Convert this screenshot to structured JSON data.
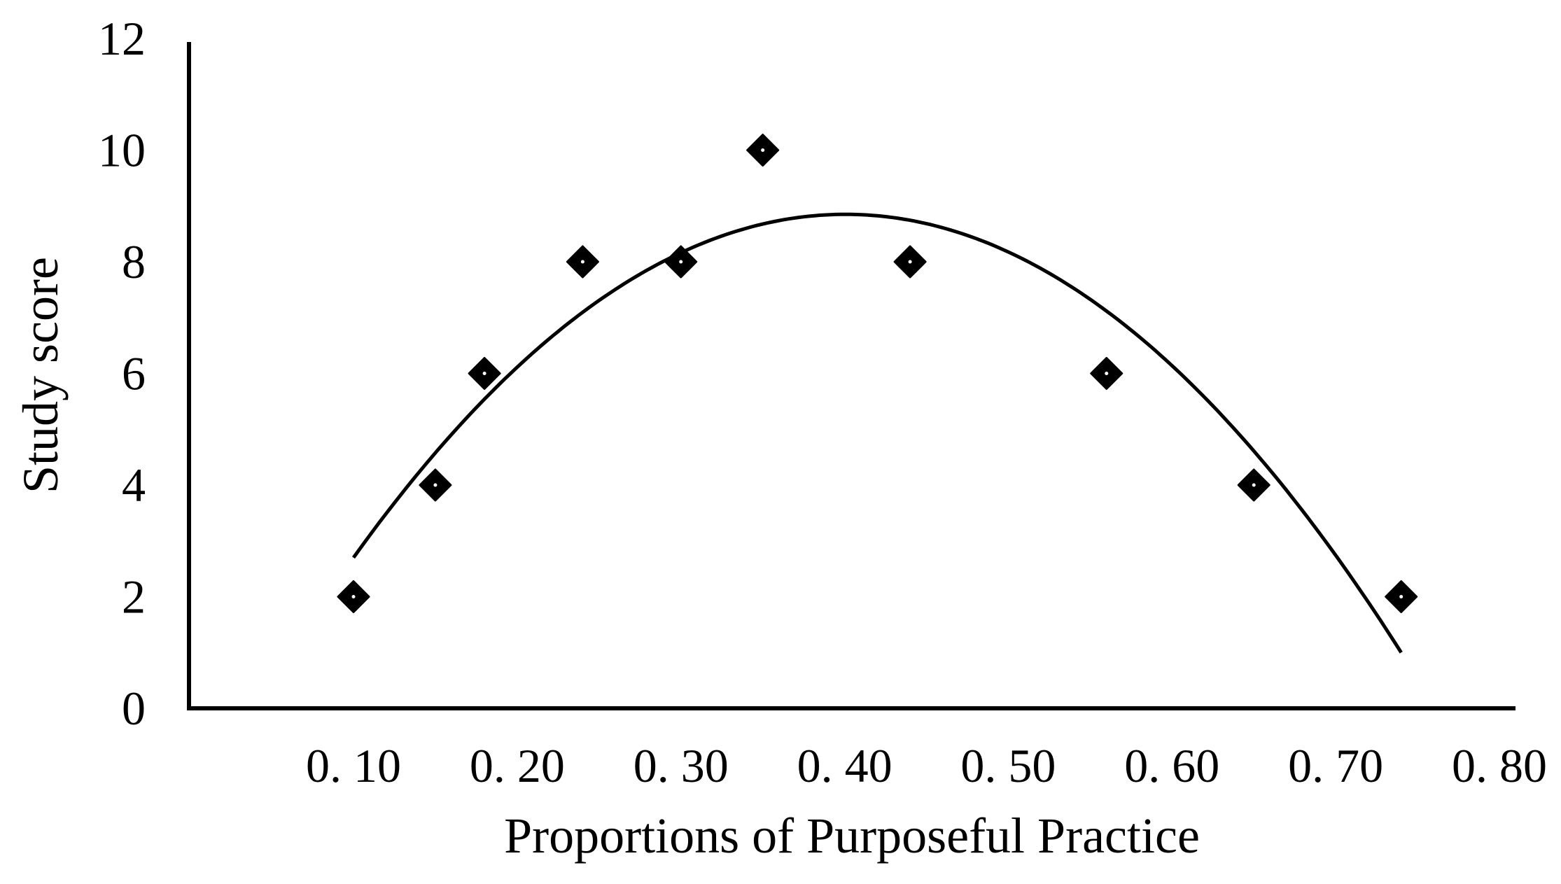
{
  "chart_data": {
    "type": "scatter",
    "title": "",
    "xlabel": "Proportions of Purposeful Practice",
    "ylabel": "Study score",
    "xlim": [
      0.0,
      0.8
    ],
    "ylim": [
      0,
      12
    ],
    "x_ticks": [
      0.1,
      0.2,
      0.3,
      0.4,
      0.5,
      0.6,
      0.7,
      0.8
    ],
    "x_tick_labels": [
      "0. 10",
      "0. 20",
      "0. 30",
      "0. 40",
      "0. 50",
      "0. 60",
      "0. 70",
      "0. 80"
    ],
    "y_ticks": [
      0,
      2,
      4,
      6,
      8,
      10,
      12
    ],
    "y_tick_labels": [
      "0",
      "2",
      "4",
      "6",
      "8",
      "10",
      "12"
    ],
    "grid": false,
    "legend": "none",
    "marker": "diamond",
    "marker_color": "#000000",
    "series": [
      {
        "x": [
          0.1,
          0.15,
          0.18,
          0.24,
          0.3,
          0.35,
          0.44,
          0.56,
          0.65,
          0.74
        ],
        "y": [
          2,
          4,
          6,
          8,
          8,
          10,
          8,
          6,
          4,
          2
        ]
      }
    ],
    "trendline": {
      "type": "polynomial",
      "order": 2,
      "x_range": [
        0.1,
        0.74
      ],
      "points": [
        {
          "x": 0.1,
          "y": 2.7
        },
        {
          "x": 0.4,
          "y": 8.85
        },
        {
          "x": 0.74,
          "y": 1.0
        }
      ]
    }
  }
}
